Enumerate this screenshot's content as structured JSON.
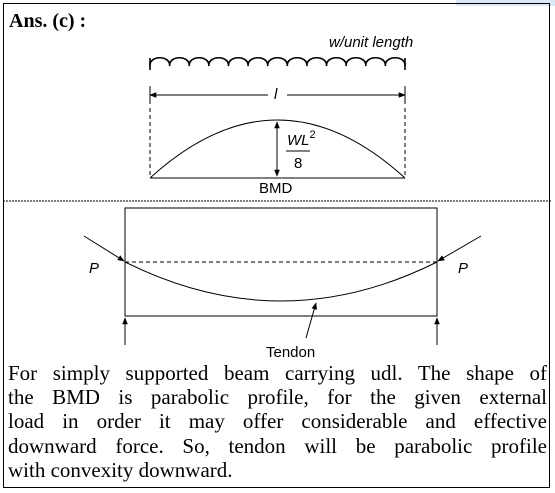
{
  "header": {
    "label": "Ans. (c) :"
  },
  "diagram_bmd": {
    "load": "w/unit length",
    "span": "l",
    "moment_numerator": "WL",
    "moment_exponent": "2",
    "moment_denominator": "8",
    "caption": "BMD"
  },
  "diagram_tendon": {
    "force_left": "P",
    "force_right": "P",
    "tendon": "Tendon"
  },
  "paragraph": {
    "lines": [
      "For simply supported beam carrying udl. The shape of",
      "the BMD is parabolic profile, for the given external",
      "load in order it may offer considerable and effective",
      "downward force. So, tendon will be parabolic profile",
      "with convexity downward."
    ]
  }
}
